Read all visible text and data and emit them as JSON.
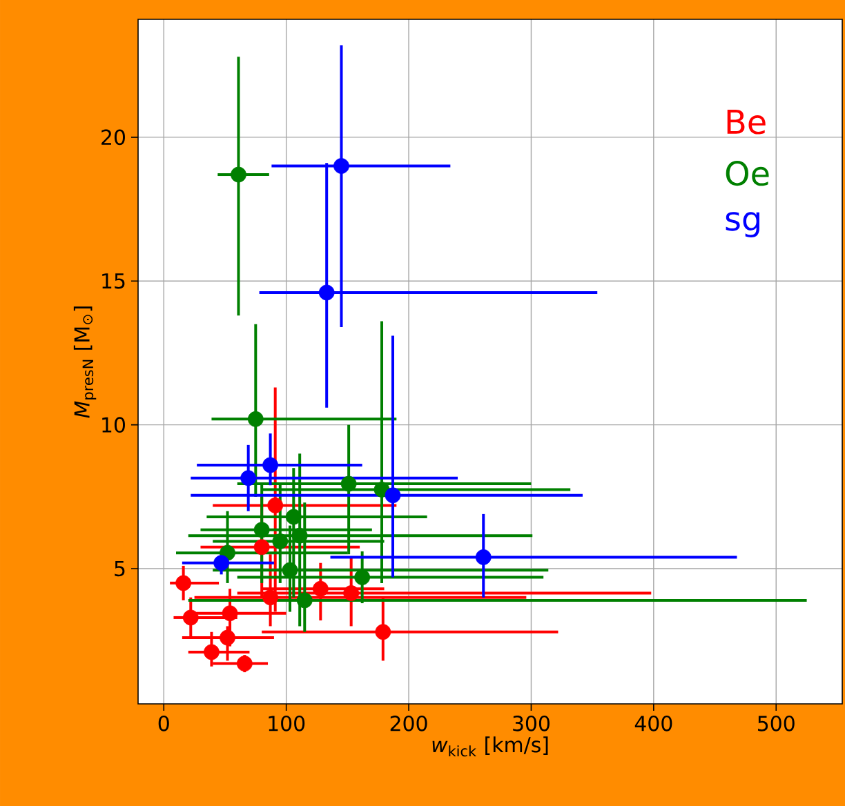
{
  "chart_data": {
    "type": "scatter",
    "xlabel": "*w*$_{kick}$ [km/s]",
    "ylabel": "*M*$_{presN}$ [M$_{⊙}$]",
    "xlim": [
      -21,
      554
    ],
    "ylim": [
      0.3,
      24.1
    ],
    "xticks": [
      0,
      100,
      200,
      300,
      400,
      500
    ],
    "yticks": [
      5,
      10,
      15,
      20
    ],
    "grid": true,
    "legend": "top right",
    "marker": "circle",
    "series": [
      {
        "name": "Be",
        "color": "#ff0000",
        "x": [
          16,
          22,
          54,
          52,
          39,
          66,
          87,
          128,
          153,
          179,
          91,
          80
        ],
        "values": [
          4.5,
          3.3,
          3.45,
          2.6,
          2.1,
          1.7,
          4.0,
          4.3,
          4.15,
          2.8,
          7.2,
          5.75
        ],
        "xerrors": [
          [
            5,
            45
          ],
          [
            8,
            60
          ],
          [
            20,
            100
          ],
          [
            15,
            90
          ],
          [
            20,
            70
          ],
          [
            40,
            85
          ],
          [
            25,
            296
          ],
          [
            80,
            180
          ],
          [
            60,
            398
          ],
          [
            80,
            322
          ],
          [
            40,
            190
          ],
          [
            30,
            160
          ]
        ],
        "errors": [
          [
            3.9,
            5.1
          ],
          [
            2.6,
            4.0
          ],
          [
            2.3,
            4.3
          ],
          [
            1.8,
            3.0
          ],
          [
            1.6,
            2.8
          ],
          [
            1.4,
            2.0
          ],
          [
            3.0,
            5.5
          ],
          [
            3.2,
            5.2
          ],
          [
            3.0,
            5.4
          ],
          [
            1.8,
            4.0
          ],
          [
            3.5,
            11.3
          ],
          [
            4.0,
            7.5
          ]
        ]
      },
      {
        "name": "Oe",
        "color": "#008000",
        "x": [
          61,
          75,
          151,
          178,
          106,
          111,
          95,
          80,
          52,
          103,
          162,
          115
        ],
        "values": [
          18.7,
          10.2,
          7.95,
          7.75,
          6.8,
          6.15,
          5.95,
          6.35,
          5.55,
          4.95,
          4.7,
          3.9
        ],
        "xerrors": [
          [
            44,
            86
          ],
          [
            39,
            190
          ],
          [
            60,
            300
          ],
          [
            80,
            332
          ],
          [
            35,
            215
          ],
          [
            20,
            301
          ],
          [
            40,
            180
          ],
          [
            30,
            170
          ],
          [
            10,
            150
          ],
          [
            40,
            314
          ],
          [
            60,
            310
          ],
          [
            20,
            525
          ]
        ],
        "errors": [
          [
            13.8,
            22.8
          ],
          [
            7.5,
            13.5
          ],
          [
            5.5,
            10.0
          ],
          [
            4.5,
            13.6
          ],
          [
            4.0,
            8.5
          ],
          [
            3.0,
            9.0
          ],
          [
            4.5,
            8.0
          ],
          [
            4.5,
            8.0
          ],
          [
            4.5,
            7.0
          ],
          [
            3.5,
            6.5
          ],
          [
            3.8,
            5.6
          ],
          [
            2.8,
            7.3
          ]
        ]
      },
      {
        "name": "sg",
        "color": "#0000ff",
        "x": [
          145,
          133,
          187,
          87,
          69,
          261,
          47
        ],
        "values": [
          19.0,
          14.6,
          7.55,
          8.6,
          8.15,
          5.4,
          5.2
        ],
        "xerrors": [
          [
            88,
            234
          ],
          [
            78,
            354
          ],
          [
            22,
            342
          ],
          [
            27,
            162
          ],
          [
            22,
            240
          ],
          [
            136,
            468
          ],
          [
            15,
            90
          ]
        ],
        "errors": [
          [
            13.4,
            23.2
          ],
          [
            10.6,
            19.1
          ],
          [
            4.7,
            13.1
          ],
          [
            7.9,
            9.7
          ],
          [
            7.0,
            9.3
          ],
          [
            4.0,
            6.9
          ],
          [
            4.8,
            5.6
          ]
        ]
      }
    ]
  }
}
